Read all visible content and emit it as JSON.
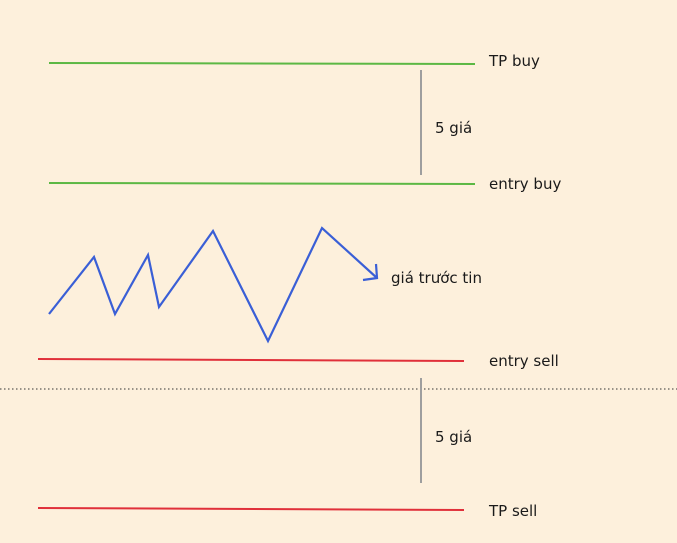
{
  "labels": {
    "tp_buy": "TP buy",
    "entry_buy": "entry buy",
    "gap_top": "5 giá",
    "price_before_news": "giá trước tin",
    "entry_sell": "entry sell",
    "gap_bottom": "5 giá",
    "tp_sell": "TP sell"
  },
  "colors": {
    "background": "#fdf0dc",
    "buy_lines": "#5cb844",
    "sell_lines": "#e0303a",
    "price_path": "#3a5fd6",
    "gap_markers": "#9e9e9e",
    "separator": "#333333"
  }
}
